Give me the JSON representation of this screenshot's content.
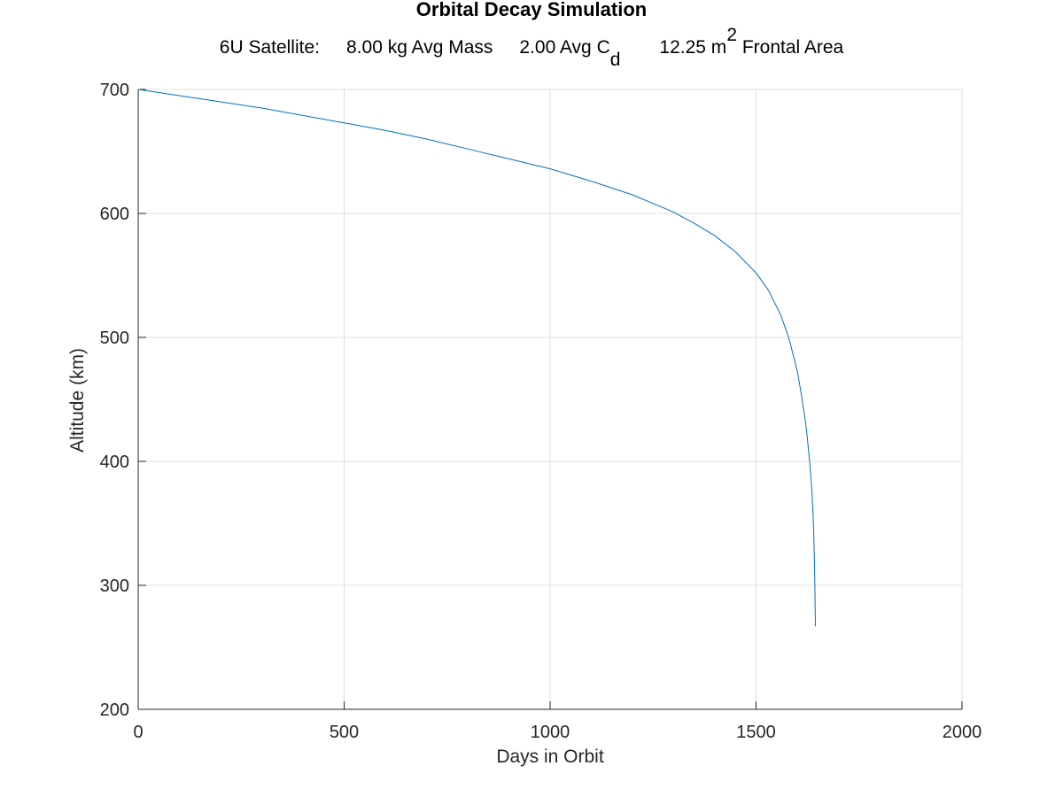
{
  "chart_data": {
    "type": "line",
    "title": "Orbital Decay Simulation",
    "subtitle": {
      "label": "6U Satellite:",
      "mass": "8.00 kg Avg Mass",
      "cd_prefix": "2.00 Avg C",
      "cd_sub": "d",
      "area_prefix": "12.25 m",
      "area_sup": "2",
      "area_suffix": " Frontal Area"
    },
    "xlabel": "Days in Orbit",
    "ylabel": "Altitude (km)",
    "xlim": [
      0,
      2000
    ],
    "ylim": [
      200,
      700
    ],
    "xticks": [
      0,
      500,
      1000,
      1500,
      2000
    ],
    "yticks": [
      200,
      300,
      400,
      500,
      600,
      700
    ],
    "grid": true,
    "line_color": "#0072bd",
    "series": [
      {
        "x": [
          0,
          100,
          200,
          300,
          400,
          500,
          600,
          700,
          800,
          900,
          1000,
          1100,
          1200,
          1300,
          1350,
          1400,
          1450,
          1500,
          1530,
          1560,
          1580,
          1600,
          1610,
          1620,
          1625,
          1630,
          1635,
          1638,
          1640,
          1642,
          1643,
          1644
        ],
        "y": [
          700,
          695,
          690,
          685,
          679,
          673,
          667,
          660,
          652,
          644,
          636,
          626,
          615,
          601,
          592,
          582,
          569,
          552,
          538,
          518,
          499,
          473,
          454,
          432,
          417,
          400,
          379,
          360,
          342,
          315,
          295,
          267
        ]
      }
    ]
  }
}
